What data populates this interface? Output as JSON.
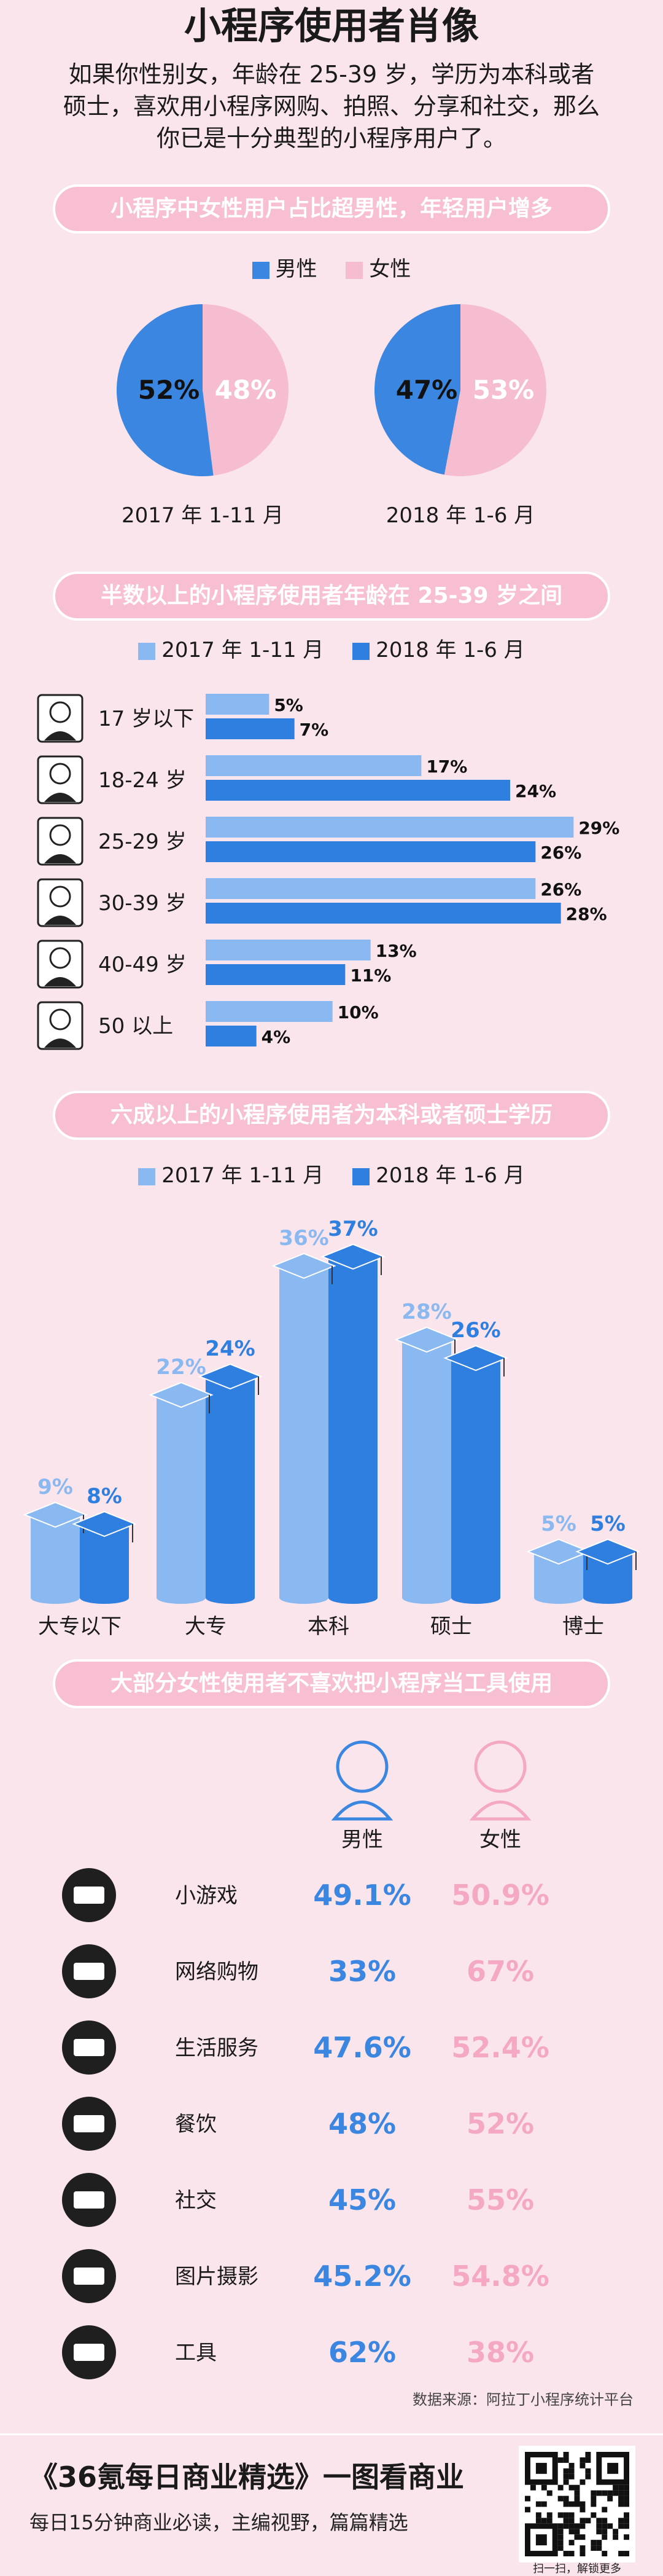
{
  "title": "小程序使用者肖像",
  "intro": "如果你性别女，年龄在 25-39 岁，学历为本科或者硕士，喜欢用小程序网购、拍照、分享和社交，那么你已是十分典型的小程序用户了。",
  "sections": {
    "gender": "小程序中女性用户占比超男性，年轻用户增多",
    "age": "半数以上的小程序使用者年龄在 25-39 岁之间",
    "edu": "六成以上的小程序使用者为本科或者硕士学历",
    "usage": "大部分女性使用者不喜欢把小程序当工具使用"
  },
  "colors": {
    "male": "#3a86e0",
    "female": "#f6bdd1",
    "light": "#8ab8f0",
    "dark": "#2f7fe0",
    "femaleText": "#f4a8c4"
  },
  "legend_gender": {
    "male": "男性",
    "female": "女性"
  },
  "legend_period": {
    "p1": "2017 年 1-11 月",
    "p2": "2018 年 1-6 月"
  },
  "chart_data": [
    {
      "type": "pie",
      "title": "2017 年 1-11 月",
      "labels": [
        "男性",
        "女性"
      ],
      "values": [
        52,
        48
      ],
      "value_labels": [
        "52%",
        "48%"
      ]
    },
    {
      "type": "pie",
      "title": "2018 年 1-6 月",
      "labels": [
        "男性",
        "女性"
      ],
      "values": [
        47,
        53
      ],
      "value_labels": [
        "47%",
        "53%"
      ]
    },
    {
      "type": "bar",
      "orientation": "horizontal",
      "categories": [
        "17 岁以下",
        "18-24 岁",
        "25-29 岁",
        "30-39 岁",
        "40-49 岁",
        "50 以上"
      ],
      "series": [
        {
          "name": "2017 年 1-11 月",
          "values": [
            5,
            17,
            29,
            26,
            13,
            10
          ],
          "labels": [
            "5%",
            "17%",
            "29%",
            "26%",
            "13%",
            "10%"
          ]
        },
        {
          "name": "2018 年 1-6 月",
          "values": [
            7,
            24,
            26,
            28,
            11,
            4
          ],
          "labels": [
            "7%",
            "24%",
            "26%",
            "28%",
            "11%",
            "4%"
          ]
        }
      ],
      "xlim": [
        0,
        30
      ]
    },
    {
      "type": "bar",
      "categories": [
        "大专以下",
        "大专",
        "本科",
        "硕士",
        "博士"
      ],
      "series": [
        {
          "name": "2017 年 1-11 月",
          "values": [
            9,
            22,
            36,
            28,
            5
          ],
          "labels": [
            "9%",
            "22%",
            "36%",
            "28%",
            "5%"
          ]
        },
        {
          "name": "2018 年 1-6 月",
          "values": [
            8,
            24,
            37,
            26,
            5
          ],
          "labels": [
            "8%",
            "24%",
            "37%",
            "26%",
            "5%"
          ]
        }
      ],
      "ylim": [
        0,
        40
      ]
    },
    {
      "type": "table",
      "columns": [
        "男性",
        "女性"
      ],
      "rows": [
        {
          "category": "小游戏",
          "icon": "cake-icon",
          "male": "49.1%",
          "female": "50.9%"
        },
        {
          "category": "网络购物",
          "icon": "basket-icon",
          "male": "33%",
          "female": "67%"
        },
        {
          "category": "生活服务",
          "icon": "card-icon",
          "male": "47.6%",
          "female": "52.4%"
        },
        {
          "category": "餐饮",
          "icon": "bowl-icon",
          "male": "48%",
          "female": "52%"
        },
        {
          "category": "社交",
          "icon": "chat-icon",
          "male": "45%",
          "female": "55%"
        },
        {
          "category": "图片摄影",
          "icon": "camera-aperture-icon",
          "male": "45.2%",
          "female": "54.8%"
        },
        {
          "category": "工具",
          "icon": "bulb-icon",
          "male": "62%",
          "female": "38%"
        }
      ]
    }
  ],
  "source": "数据来源：阿拉丁小程序统计平台",
  "footer": {
    "title": "《36氪每日商业精选》一图看商业",
    "subtitle": "每日15分钟商业必读，主编视野，篇篇精选",
    "qr_caption": "扫一扫，解锁更多"
  }
}
